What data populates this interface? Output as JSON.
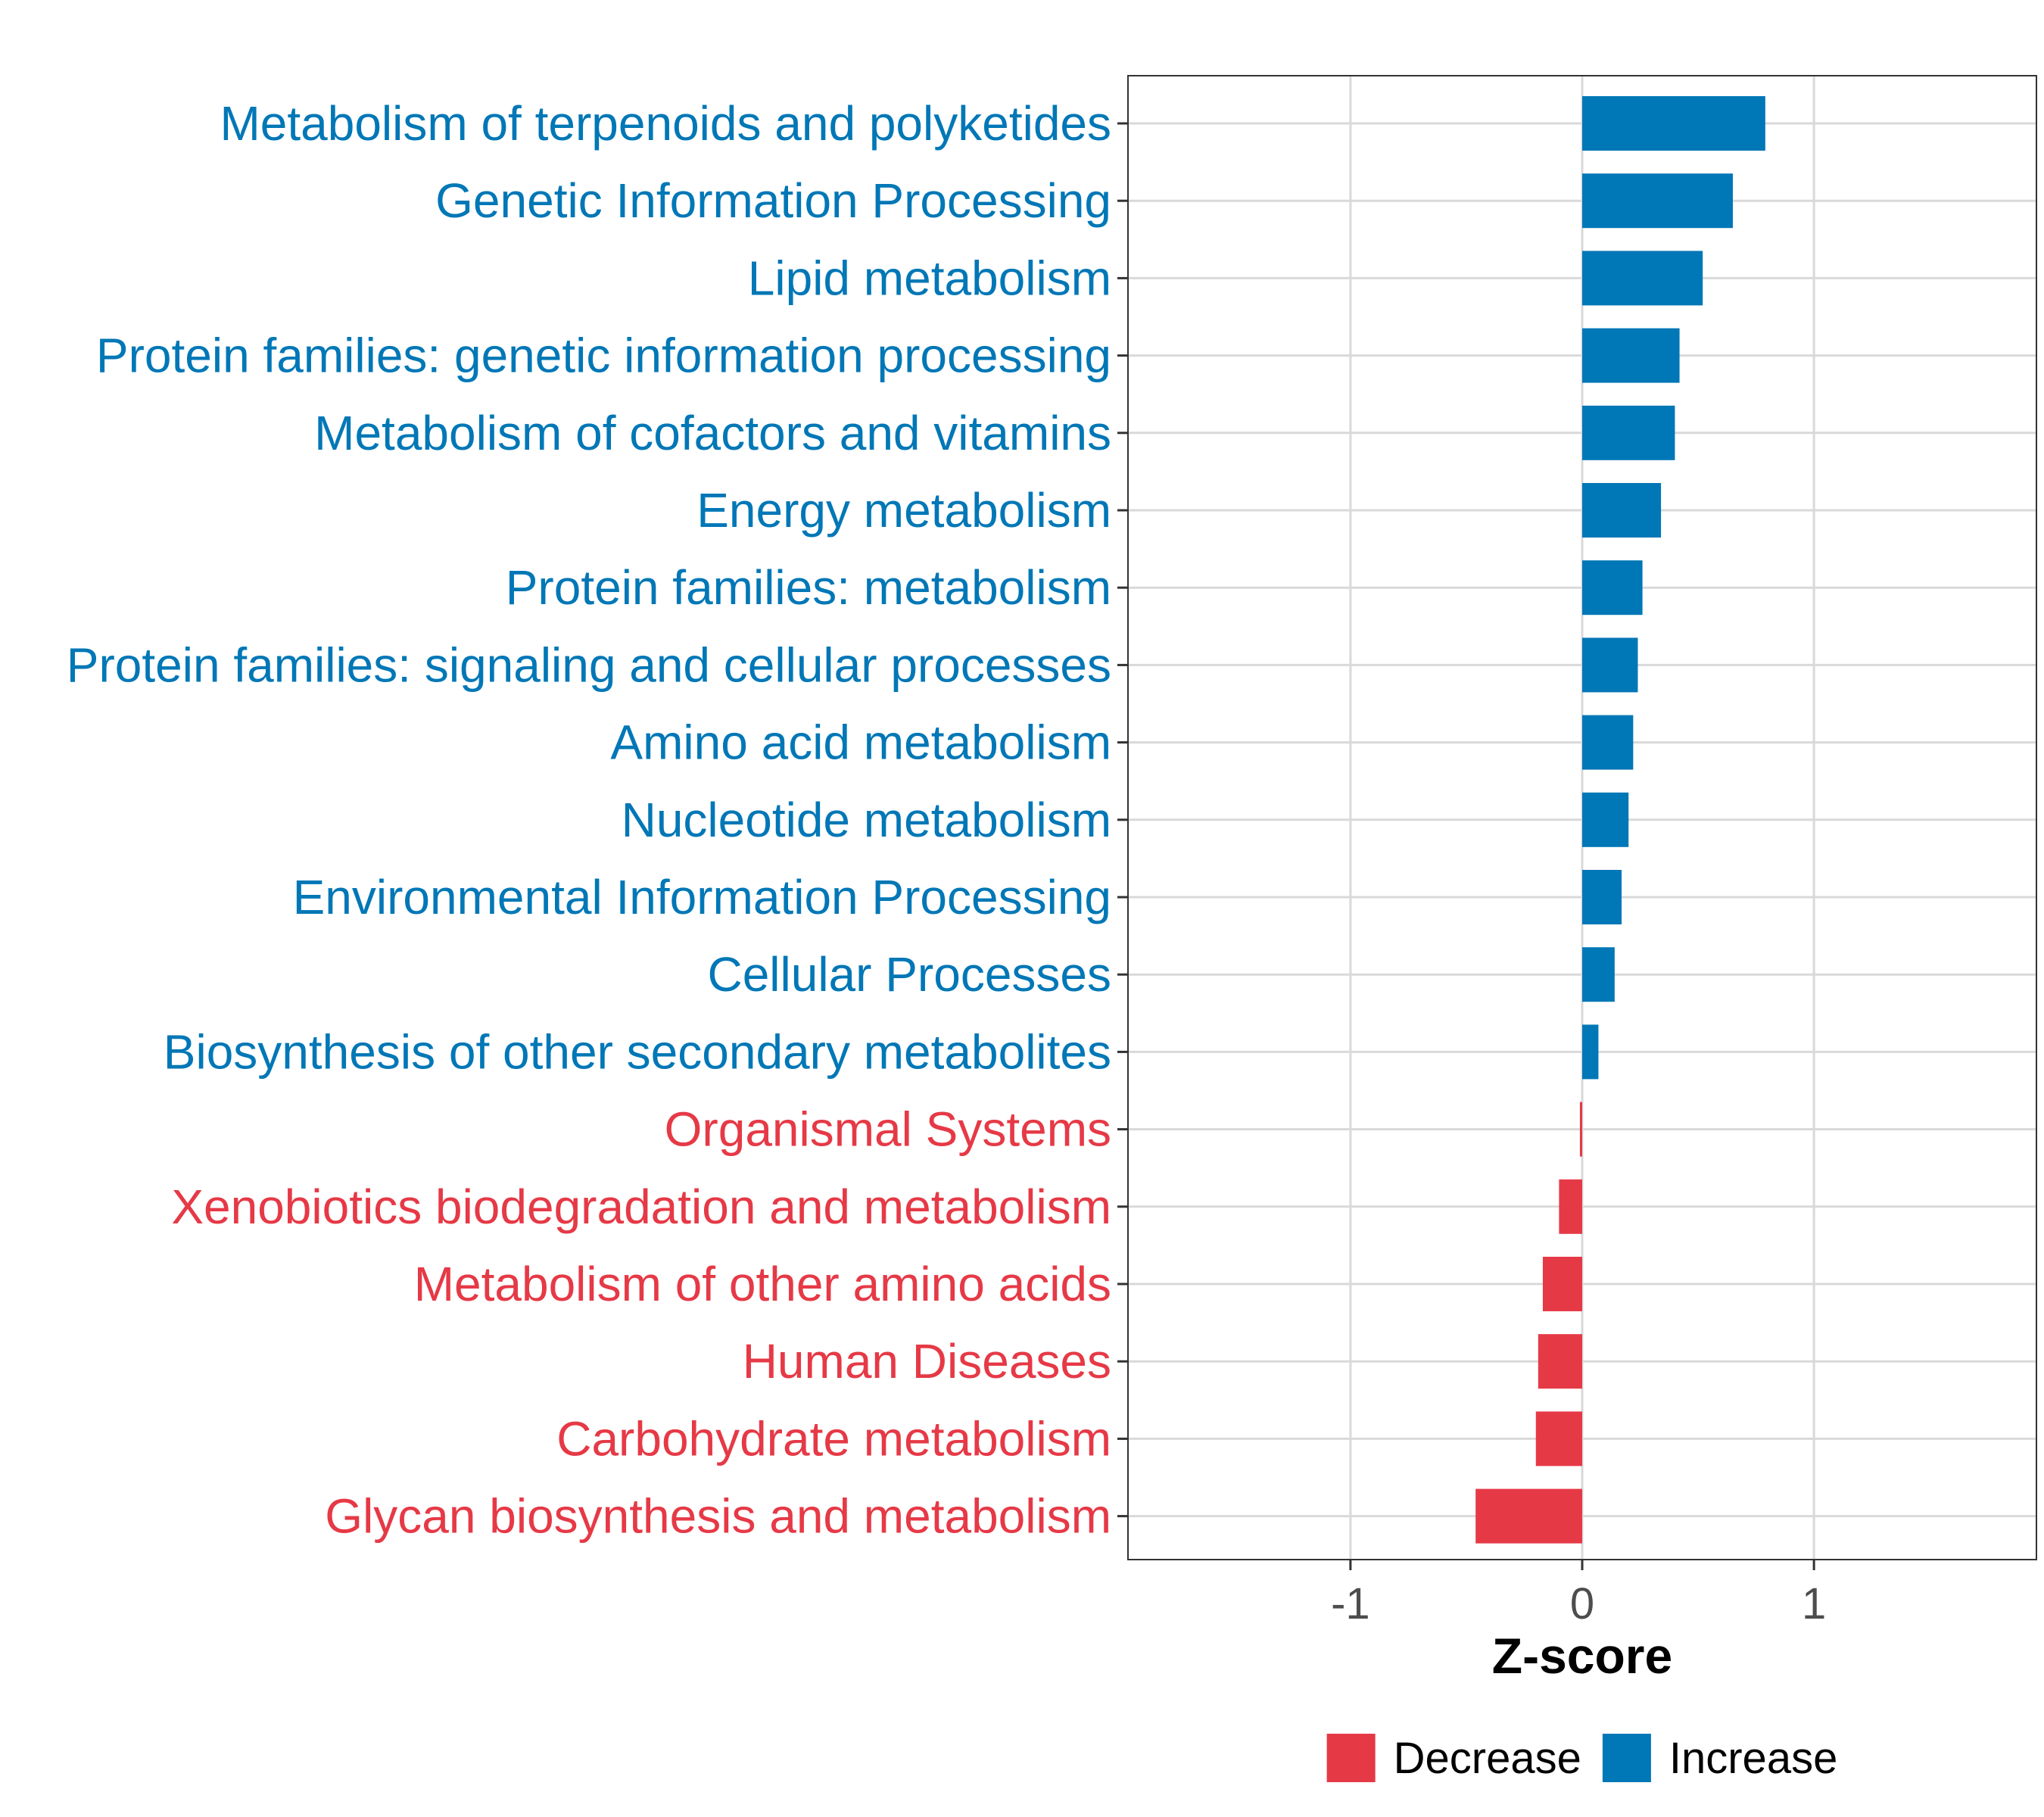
{
  "chart_data": {
    "type": "bar",
    "orientation": "horizontal",
    "title": "",
    "xlabel": "Z-score",
    "ylabel": "",
    "xlim": [
      -1.96,
      1.96
    ],
    "xticks": [
      -1,
      0,
      1
    ],
    "xtick_labels": [
      "-1",
      "0",
      "1"
    ],
    "grid": true,
    "legend_position": "bottom",
    "categories": [
      "Metabolism of terpenoids and polyketides",
      "Genetic Information Processing",
      "Lipid metabolism",
      "Protein families: genetic information processing",
      "Metabolism of cofactors and vitamins",
      "Energy metabolism",
      "Protein families: metabolism",
      "Protein families: signaling and cellular processes",
      "Amino acid metabolism",
      "Nucleotide metabolism",
      "Environmental Information Processing",
      "Cellular Processes",
      "Biosynthesis of other secondary metabolites",
      "Organismal Systems",
      "Xenobiotics biodegradation and metabolism",
      "Metabolism of other amino acids",
      "Human Diseases",
      "Carbohydrate metabolism",
      "Glycan biosynthesis and metabolism"
    ],
    "values": [
      0.79,
      0.65,
      0.52,
      0.42,
      0.4,
      0.34,
      0.26,
      0.24,
      0.22,
      0.2,
      0.17,
      0.14,
      0.07,
      -0.01,
      -0.1,
      -0.17,
      -0.19,
      -0.2,
      -0.46
    ],
    "groups": [
      "Increase",
      "Increase",
      "Increase",
      "Increase",
      "Increase",
      "Increase",
      "Increase",
      "Increase",
      "Increase",
      "Increase",
      "Increase",
      "Increase",
      "Increase",
      "Decrease",
      "Decrease",
      "Decrease",
      "Decrease",
      "Decrease",
      "Decrease"
    ],
    "legend": [
      {
        "name": "Decrease",
        "color": "#e63946"
      },
      {
        "name": "Increase",
        "color": "#0077b6"
      }
    ],
    "colors": {
      "Decrease": "#e63946",
      "Increase": "#0077b6"
    }
  }
}
